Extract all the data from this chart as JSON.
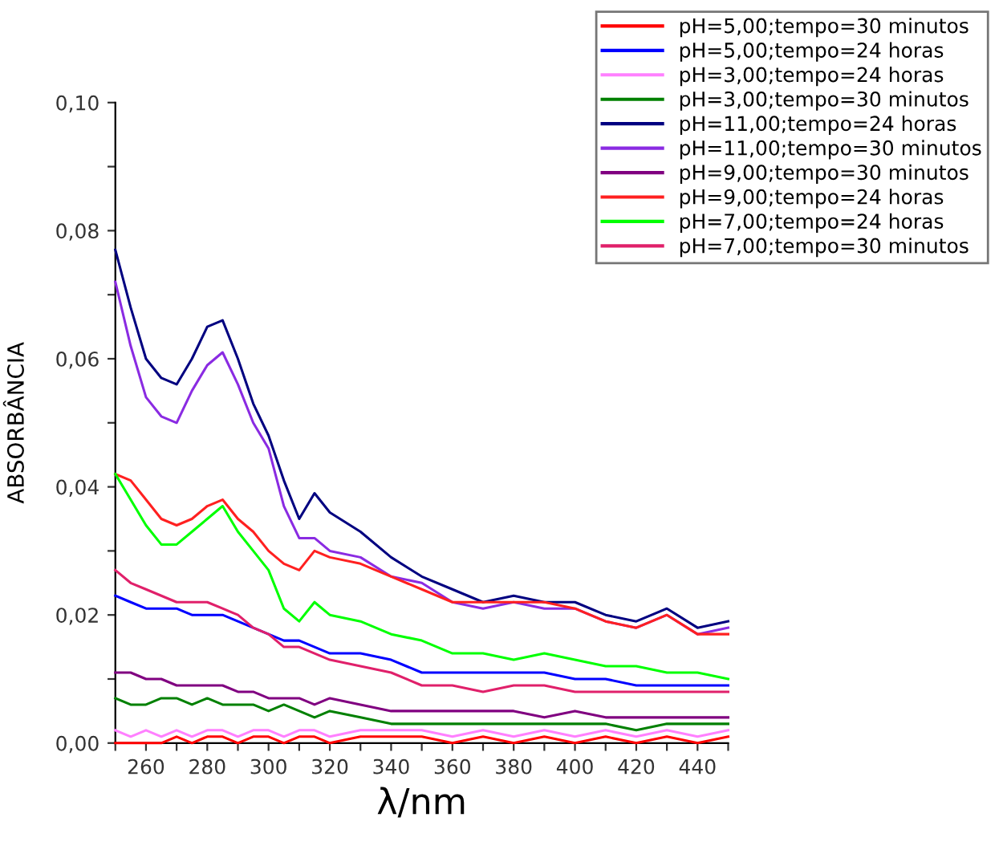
{
  "chart_data": {
    "type": "line",
    "xlabel": "λ/nm",
    "ylabel": "ABSORBÂNCIA",
    "legend": "top right",
    "grid": false,
    "marker": "none",
    "line_style": "solid",
    "xlim": [
      250,
      450
    ],
    "ylim": [
      0,
      0.1
    ],
    "xticks": [
      {
        "value": 250,
        "label": null
      },
      260,
      {
        "value": 270,
        "label": null
      },
      280,
      {
        "value": 290,
        "label": null
      },
      300,
      {
        "value": 310,
        "label": null
      },
      320,
      {
        "value": 330,
        "label": null
      },
      340,
      {
        "value": 350,
        "label": null
      },
      360,
      {
        "value": 370,
        "label": null
      },
      380,
      {
        "value": 390,
        "label": null
      },
      400,
      {
        "value": 410,
        "label": null
      },
      420,
      {
        "value": 430,
        "label": null
      },
      440,
      {
        "value": 450,
        "label": null
      }
    ],
    "yticks": [
      {
        "value": 0,
        "label": "0,00"
      },
      {
        "value": 0.01,
        "label": null
      },
      {
        "value": 0.02,
        "label": "0,02"
      },
      {
        "value": 0.03,
        "label": null
      },
      {
        "value": 0.04,
        "label": "0,04"
      },
      {
        "value": 0.05,
        "label": null
      },
      {
        "value": 0.06,
        "label": "0,06"
      },
      {
        "value": 0.07,
        "label": null
      },
      {
        "value": 0.08,
        "label": "0,08"
      },
      {
        "value": 0.09,
        "label": null
      },
      {
        "value": 0.1,
        "label": "0,10"
      }
    ],
    "x": [
      250,
      255,
      260,
      265,
      270,
      275,
      280,
      285,
      290,
      295,
      300,
      305,
      310,
      315,
      320,
      330,
      340,
      350,
      360,
      370,
      380,
      390,
      400,
      410,
      420,
      430,
      440,
      450
    ],
    "series": [
      {
        "name": "pH=5,00;tempo=30 minutos",
        "color": "#ff0000",
        "values": [
          0.0,
          0.0,
          0.0,
          0.0,
          0.001,
          0.0,
          0.001,
          0.001,
          0.0,
          0.001,
          0.001,
          0.0,
          0.001,
          0.001,
          0.0,
          0.001,
          0.001,
          0.001,
          0.0,
          0.001,
          0.0,
          0.001,
          0.0,
          0.001,
          0.0,
          0.001,
          0.0,
          0.001
        ]
      },
      {
        "name": "pH=5,00;tempo=24 horas",
        "color": "#0000ff",
        "values": [
          0.023,
          0.022,
          0.021,
          0.021,
          0.021,
          0.02,
          0.02,
          0.02,
          0.019,
          0.018,
          0.017,
          0.016,
          0.016,
          0.015,
          0.014,
          0.014,
          0.013,
          0.011,
          0.011,
          0.011,
          0.011,
          0.011,
          0.01,
          0.01,
          0.009,
          0.009,
          0.009,
          0.009
        ]
      },
      {
        "name": "pH=3,00;tempo=24 horas",
        "color": "#ff80ff",
        "values": [
          0.002,
          0.001,
          0.002,
          0.001,
          0.002,
          0.001,
          0.002,
          0.002,
          0.001,
          0.002,
          0.002,
          0.001,
          0.002,
          0.002,
          0.001,
          0.002,
          0.002,
          0.002,
          0.001,
          0.002,
          0.001,
          0.002,
          0.001,
          0.002,
          0.001,
          0.002,
          0.001,
          0.002
        ]
      },
      {
        "name": "pH=3,00;tempo=30 minutos",
        "color": "#008000",
        "values": [
          0.007,
          0.006,
          0.006,
          0.007,
          0.007,
          0.006,
          0.007,
          0.006,
          0.006,
          0.006,
          0.005,
          0.006,
          0.005,
          0.004,
          0.005,
          0.004,
          0.003,
          0.003,
          0.003,
          0.003,
          0.003,
          0.003,
          0.003,
          0.003,
          0.002,
          0.003,
          0.003,
          0.003
        ]
      },
      {
        "name": "pH=11,00;tempo=24 horas",
        "color": "#000080",
        "values": [
          0.077,
          0.068,
          0.06,
          0.057,
          0.056,
          0.06,
          0.065,
          0.066,
          0.06,
          0.053,
          0.048,
          0.041,
          0.035,
          0.039,
          0.036,
          0.033,
          0.029,
          0.026,
          0.024,
          0.022,
          0.023,
          0.022,
          0.022,
          0.02,
          0.019,
          0.021,
          0.018,
          0.019
        ]
      },
      {
        "name": "pH=11,00;tempo=30 minutos",
        "color": "#8a2be2",
        "values": [
          0.072,
          0.062,
          0.054,
          0.051,
          0.05,
          0.055,
          0.059,
          0.061,
          0.056,
          0.05,
          0.046,
          0.037,
          0.032,
          0.032,
          0.03,
          0.029,
          0.026,
          0.025,
          0.022,
          0.021,
          0.022,
          0.021,
          0.021,
          0.019,
          0.018,
          0.02,
          0.017,
          0.018
        ]
      },
      {
        "name": "pH=9,00;tempo=30 minutos",
        "color": "#800080",
        "values": [
          0.011,
          0.011,
          0.01,
          0.01,
          0.009,
          0.009,
          0.009,
          0.009,
          0.008,
          0.008,
          0.007,
          0.007,
          0.007,
          0.006,
          0.007,
          0.006,
          0.005,
          0.005,
          0.005,
          0.005,
          0.005,
          0.004,
          0.005,
          0.004,
          0.004,
          0.004,
          0.004,
          0.004
        ]
      },
      {
        "name": "pH=9,00;tempo=24 horas",
        "color": "#ff2020",
        "values": [
          0.042,
          0.041,
          0.038,
          0.035,
          0.034,
          0.035,
          0.037,
          0.038,
          0.035,
          0.033,
          0.03,
          0.028,
          0.027,
          0.03,
          0.029,
          0.028,
          0.026,
          0.024,
          0.022,
          0.022,
          0.022,
          0.022,
          0.021,
          0.019,
          0.018,
          0.02,
          0.017,
          0.017
        ]
      },
      {
        "name": "pH=7,00;tempo=24 horas",
        "color": "#00ff00",
        "values": [
          0.042,
          0.038,
          0.034,
          0.031,
          0.031,
          0.033,
          0.035,
          0.037,
          0.033,
          0.03,
          0.027,
          0.021,
          0.019,
          0.022,
          0.02,
          0.019,
          0.017,
          0.016,
          0.014,
          0.014,
          0.013,
          0.014,
          0.013,
          0.012,
          0.012,
          0.011,
          0.011,
          0.01
        ]
      },
      {
        "name": "pH=7,00;tempo=30 minutos",
        "color": "#e0206a",
        "values": [
          0.027,
          0.025,
          0.024,
          0.023,
          0.022,
          0.022,
          0.022,
          0.021,
          0.02,
          0.018,
          0.017,
          0.015,
          0.015,
          0.014,
          0.013,
          0.012,
          0.011,
          0.009,
          0.009,
          0.008,
          0.009,
          0.009,
          0.008,
          0.008,
          0.008,
          0.008,
          0.008,
          0.008
        ]
      }
    ]
  }
}
